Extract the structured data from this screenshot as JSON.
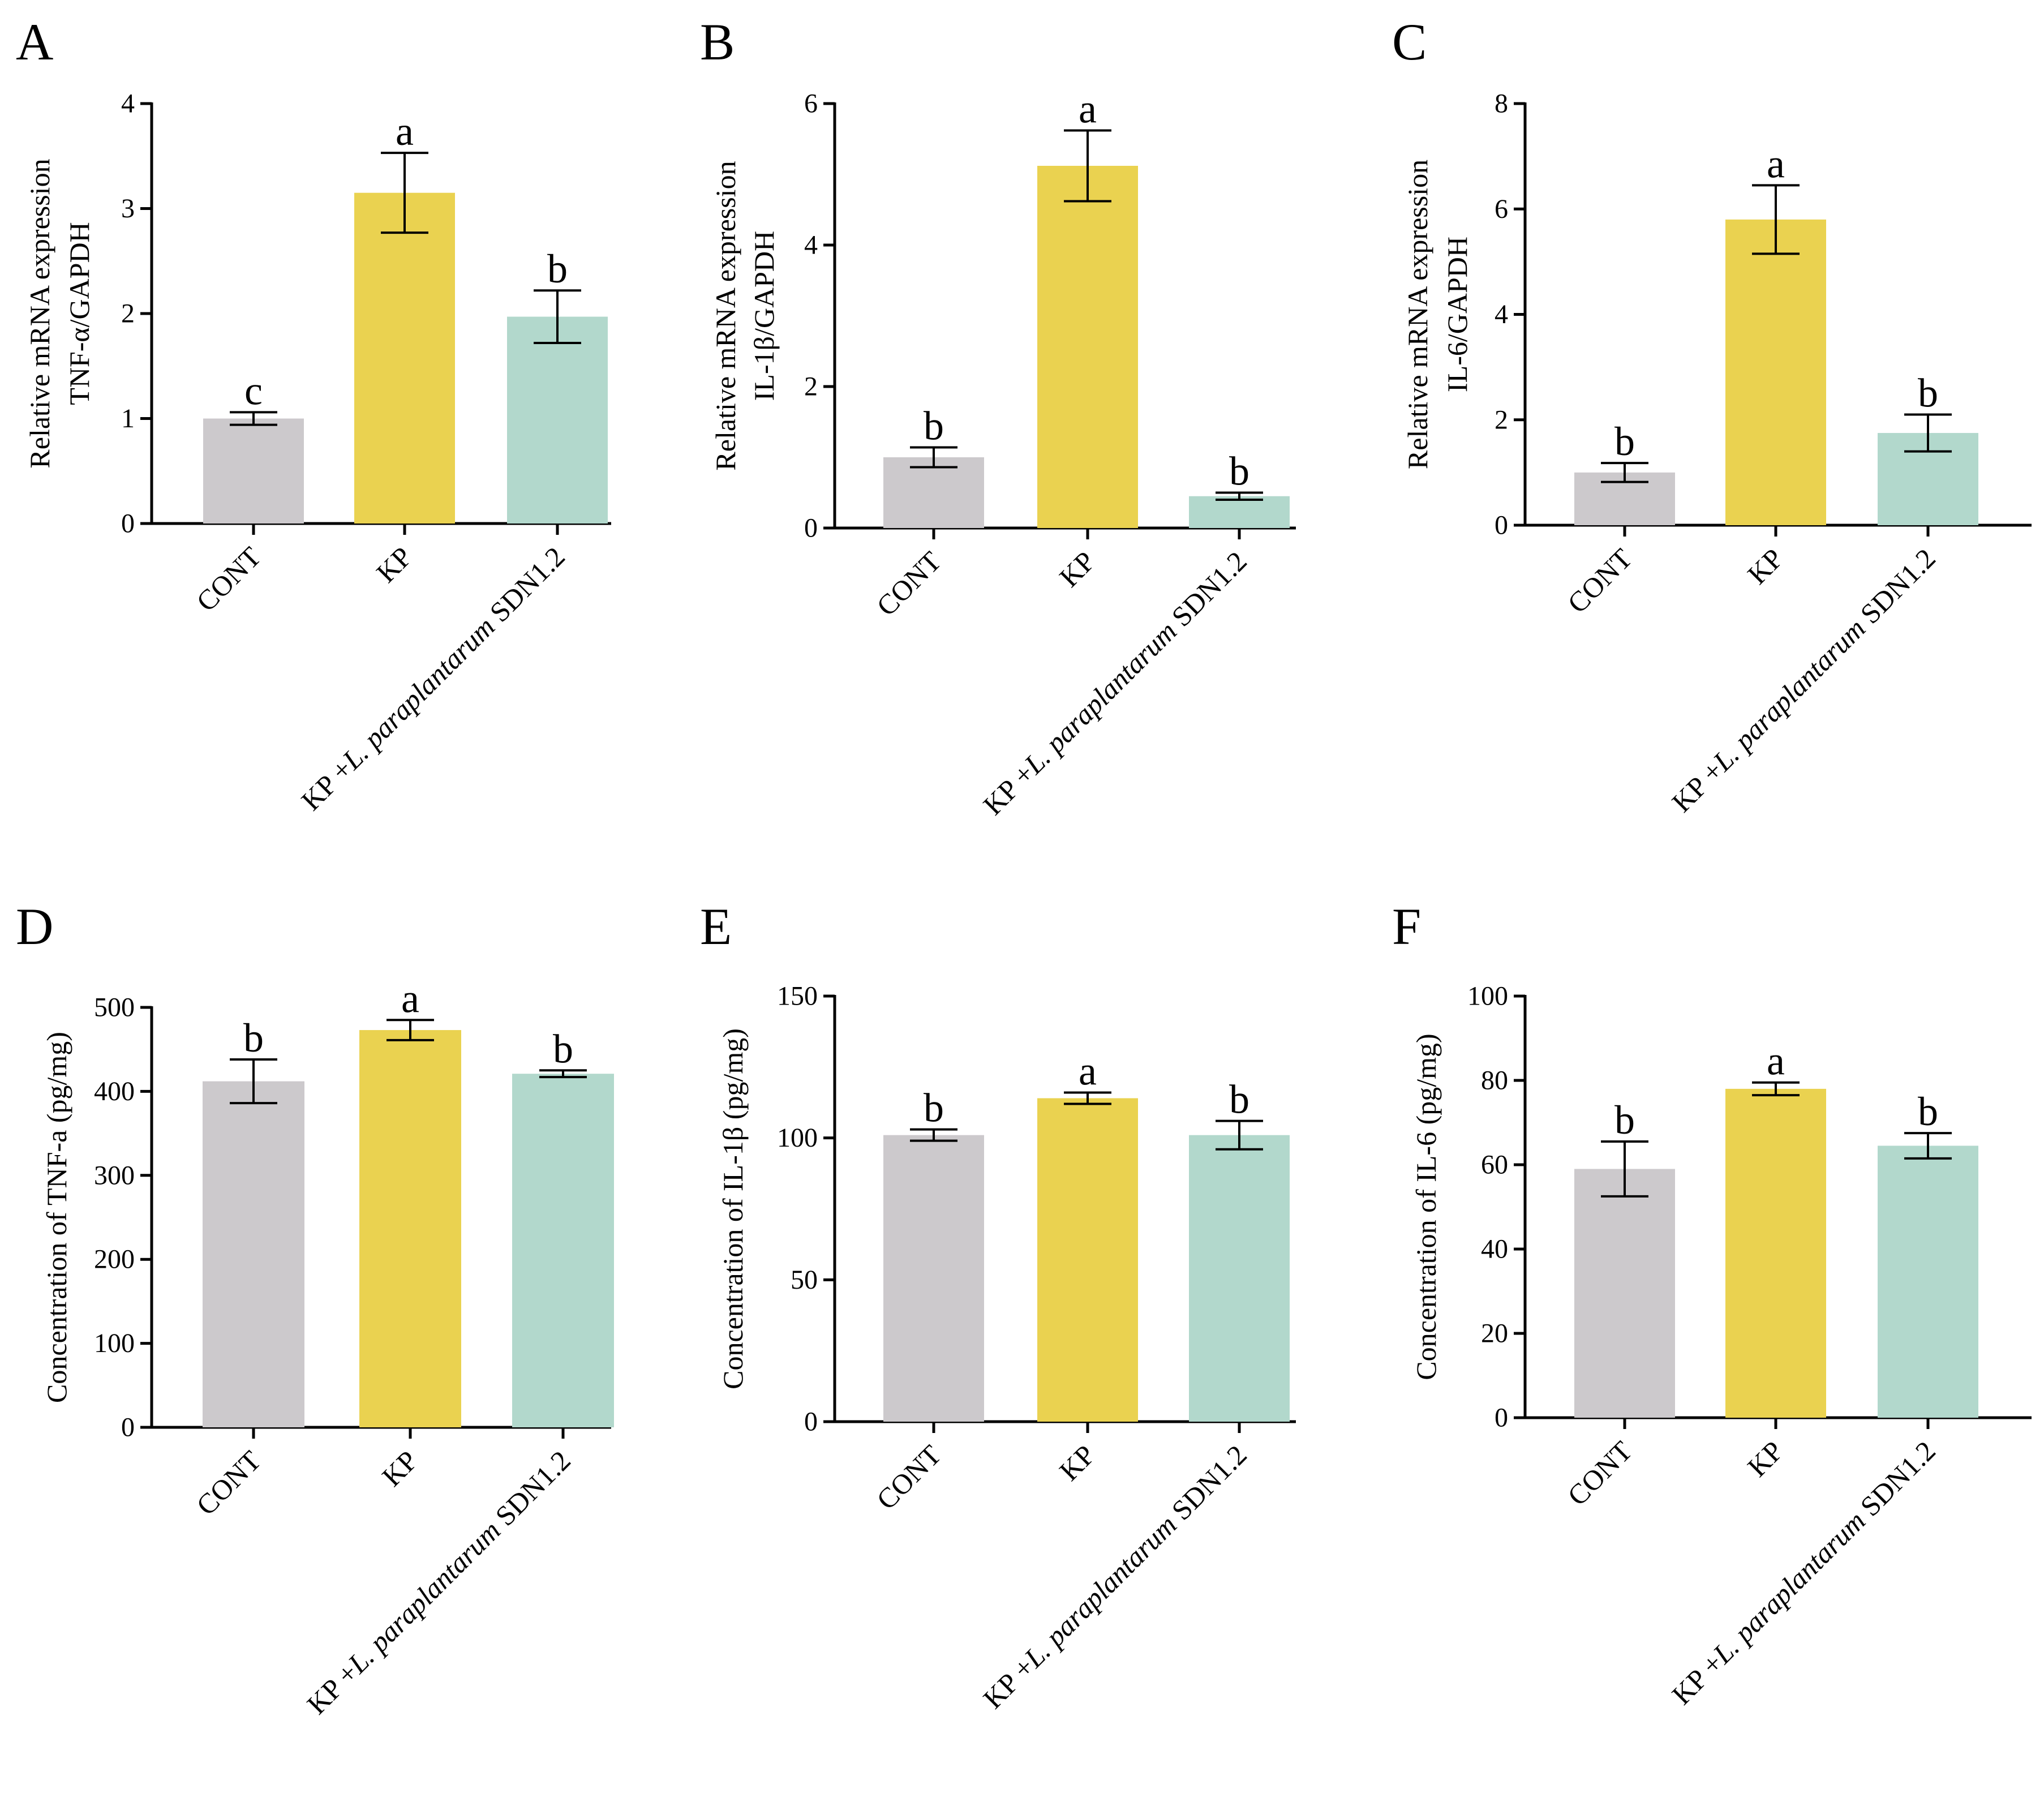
{
  "colors": {
    "CONT": "#ccc9cc",
    "KP": "#ead250",
    "SDN": "#b2d8cc",
    "axis": "#000000"
  },
  "category_label_parts": {
    "prefix": "KP +",
    "species": "L. paraplantarum",
    "suffix": " SDN1.2"
  },
  "chart_data": [
    {
      "type": "bar",
      "panel": "A",
      "ylabel_lines": [
        "Relative mRNA  expression",
        "TNF-α/GAPDH"
      ],
      "categories": [
        "CONT",
        "KP",
        "KP +L. paraplantarum SDN1.2"
      ],
      "values": [
        1.0,
        3.15,
        1.97
      ],
      "errors": [
        0.06,
        0.38,
        0.25
      ],
      "significance": [
        "c",
        "a",
        "b"
      ],
      "ylim": [
        0,
        4
      ],
      "yticks": [
        0,
        1,
        2,
        3,
        4
      ]
    },
    {
      "type": "bar",
      "panel": "B",
      "ylabel_lines": [
        "Relative mRNA expression",
        "IL-1β/GAPDH"
      ],
      "categories": [
        "CONT",
        "KP",
        "KP +L. paraplantarum SDN1.2"
      ],
      "values": [
        1.0,
        5.12,
        0.45
      ],
      "errors": [
        0.14,
        0.5,
        0.05
      ],
      "significance": [
        "b",
        "a",
        "b"
      ],
      "ylim": [
        0,
        6
      ],
      "yticks": [
        0,
        2,
        4,
        6
      ]
    },
    {
      "type": "bar",
      "panel": "C",
      "ylabel_lines": [
        "Relative mRNA  expression",
        "IL-6/GAPDH"
      ],
      "categories": [
        "CONT",
        "KP",
        "KP +L. paraplantarum SDN1.2"
      ],
      "values": [
        1.0,
        5.8,
        1.75
      ],
      "errors": [
        0.18,
        0.65,
        0.35
      ],
      "significance": [
        "b",
        "a",
        "b"
      ],
      "ylim": [
        0,
        8
      ],
      "yticks": [
        0,
        2,
        4,
        6,
        8
      ]
    },
    {
      "type": "bar",
      "panel": "D",
      "ylabel_lines": [
        "Concentration of TNF-a (pg/mg)"
      ],
      "categories": [
        "CONT",
        "KP",
        "KP +L. paraplantarum SDN1.2"
      ],
      "values": [
        412,
        473,
        421
      ],
      "errors": [
        26,
        12,
        4
      ],
      "significance": [
        "b",
        "a",
        "b"
      ],
      "ylim": [
        0,
        500
      ],
      "yticks": [
        0,
        100,
        200,
        300,
        400,
        500
      ]
    },
    {
      "type": "bar",
      "panel": "E",
      "ylabel_lines": [
        "Concentration of IL-1β (pg/mg)"
      ],
      "categories": [
        "CONT",
        "KP",
        "KP +L. paraplantarum SDN1.2"
      ],
      "values": [
        101,
        114,
        101
      ],
      "errors": [
        2,
        2,
        5
      ],
      "significance": [
        "b",
        "a",
        "b"
      ],
      "ylim": [
        0,
        150
      ],
      "yticks": [
        0,
        50,
        100,
        150
      ]
    },
    {
      "type": "bar",
      "panel": "F",
      "ylabel_lines": [
        "Concentration of IL-6 (pg/mg)"
      ],
      "categories": [
        "CONT",
        "KP",
        "KP +L. paraplantarum SDN1.2"
      ],
      "values": [
        59,
        78,
        64.5
      ],
      "errors": [
        6.5,
        1.5,
        3
      ],
      "significance": [
        "b",
        "a",
        "b"
      ],
      "ylim": [
        0,
        100
      ],
      "yticks": [
        0,
        20,
        40,
        60,
        80,
        100
      ]
    }
  ]
}
